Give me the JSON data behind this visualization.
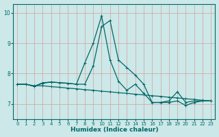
{
  "title": "",
  "xlabel": "Humidex (Indice chaleur)",
  "xlim": [
    -0.5,
    23.5
  ],
  "ylim": [
    6.5,
    10.3
  ],
  "yticks": [
    7,
    8,
    9,
    10
  ],
  "xticks": [
    0,
    1,
    2,
    3,
    4,
    5,
    6,
    7,
    8,
    9,
    10,
    11,
    12,
    13,
    14,
    15,
    16,
    17,
    18,
    19,
    20,
    21,
    22,
    23
  ],
  "bg_color": "#cce8e8",
  "line_color": "#006666",
  "grid_color": "#b0d0d0",
  "series1": [
    7.65,
    7.65,
    7.6,
    7.6,
    7.57,
    7.55,
    7.52,
    7.5,
    7.47,
    7.45,
    7.42,
    7.4,
    7.37,
    7.35,
    7.32,
    7.3,
    7.27,
    7.25,
    7.22,
    7.2,
    7.17,
    7.15,
    7.12,
    7.1
  ],
  "series2": [
    7.65,
    7.65,
    7.58,
    7.68,
    7.72,
    7.7,
    7.68,
    7.65,
    7.65,
    8.25,
    9.55,
    9.75,
    8.45,
    8.2,
    7.95,
    7.65,
    7.05,
    7.05,
    7.1,
    7.4,
    7.05,
    7.1,
    7.1,
    7.1
  ],
  "series3": [
    7.65,
    7.65,
    7.58,
    7.7,
    7.72,
    7.7,
    7.68,
    7.65,
    8.35,
    9.0,
    9.9,
    8.45,
    7.75,
    7.45,
    7.65,
    7.35,
    7.05,
    7.05,
    7.05,
    7.1,
    6.95,
    7.05,
    7.1,
    7.1
  ]
}
